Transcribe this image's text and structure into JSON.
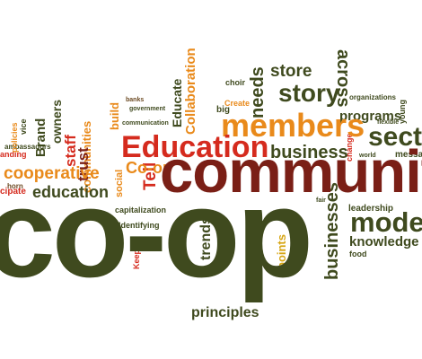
{
  "colors": {
    "dark_green": "#3f4a1e",
    "dark_red": "#7a1f16",
    "red": "#d52b1e",
    "orange": "#e98a1b",
    "gold": "#d6a514",
    "olive": "#8a8d32",
    "brown": "#6c4a23"
  },
  "words": {
    "co_op": "co-op",
    "community": "community",
    "education": "Education",
    "members": "members",
    "model": "model",
    "sect": "sect",
    "story": "story",
    "business": "business",
    "businesses": "businesses",
    "store": "store",
    "needs": "needs",
    "across": "across",
    "knowledge": "knowledge",
    "programs": "programs",
    "cooperative": "cooperative",
    "education_lower": "education",
    "tell": "Tell",
    "co_op_small": "Co-op",
    "staff": "staff",
    "trust": "trust",
    "brand": "Brand",
    "owners": "owners",
    "communities": "communities",
    "collaboration": "Collaboration",
    "educate": "Educate",
    "build": "build",
    "trends": "trends",
    "points": "points",
    "principles": "principles",
    "leadership": "leadership",
    "organizations": "organizations",
    "flexible": "flexible",
    "food": "food",
    "identifying": "Identifying",
    "capitalization": "capitalization",
    "communication": "communication",
    "social": "social",
    "create": "Create",
    "big": "big",
    "choir": "choir",
    "government": "government",
    "banks": "banks",
    "horn": "horn",
    "ambassadors": "ambassadors",
    "policies": "policies",
    "keep": "Keep",
    "messages": "messag",
    "change": "change",
    "young": "young",
    "cipate": "cipate",
    "anding": "anding",
    "vice": "vice",
    "fair": "fair",
    "world": "world"
  }
}
